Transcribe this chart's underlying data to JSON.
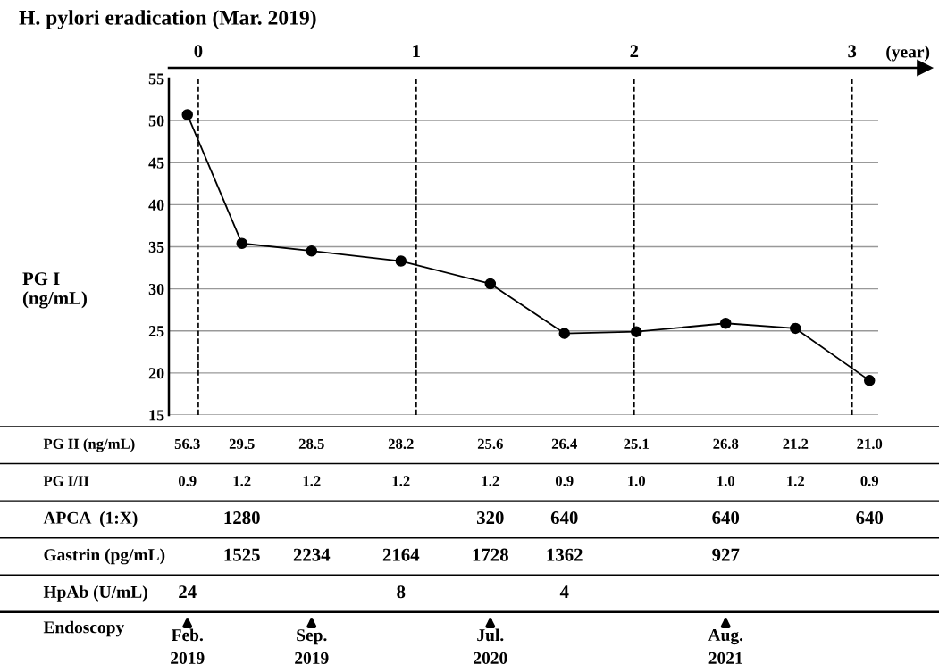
{
  "chart_data": [
    {
      "type": "line",
      "title": "H. pylori eradication (Mar. 2019)",
      "ylabel": "PG I\n(ng/mL)",
      "xlabel": "(year)",
      "x": [
        -0.05,
        0.2,
        0.52,
        0.93,
        1.34,
        1.68,
        2.01,
        2.42,
        2.74,
        3.08
      ],
      "series": [
        {
          "color": "#000000",
          "values": [
            50.7,
            35.4,
            34.5,
            33.3,
            30.6,
            24.7,
            24.9,
            25.9,
            25.3,
            19.1
          ]
        }
      ],
      "xlim": [
        -0.135,
        3.12
      ],
      "xticks": [
        0,
        1,
        2,
        3
      ],
      "ylim": [
        15,
        55
      ],
      "yticks": [
        15,
        20,
        25,
        30,
        35,
        40,
        45,
        50,
        55
      ],
      "grid": "y",
      "marker": "circle",
      "line_style": "solid",
      "ref_lines": [
        {
          "axis": "x",
          "value": 0,
          "line_style": "dashed",
          "color": "#000000"
        },
        {
          "axis": "x",
          "value": 1,
          "line_style": "dashed",
          "color": "#000000"
        },
        {
          "axis": "x",
          "value": 2,
          "line_style": "dashed",
          "color": "#000000"
        },
        {
          "axis": "x",
          "value": 3,
          "line_style": "dashed",
          "color": "#000000"
        }
      ]
    },
    {
      "type": "other",
      "y_categories": [
        "PG II (ng/mL)",
        "PG I/II",
        "APCA  (1:X)",
        "Gastrin (pg/mL)",
        "HpAb (U/mL)",
        "Endoscopy"
      ],
      "cell_labels": [
        [
          "56.3",
          "29.5",
          "28.5",
          "28.2",
          "25.6",
          "26.4",
          "25.1",
          "26.8",
          "21.2",
          "21.0"
        ],
        [
          "0.9",
          "1.2",
          "1.2",
          "1.2",
          "1.2",
          "0.9",
          "1.0",
          "1.0",
          "1.2",
          "0.9"
        ],
        [
          null,
          "1280",
          null,
          null,
          "320",
          "640",
          null,
          "640",
          null,
          "640"
        ],
        [
          null,
          "1525",
          "2234",
          "2164",
          "1728",
          "1362",
          null,
          "927",
          null,
          null
        ],
        [
          "24",
          null,
          null,
          "8",
          null,
          "4",
          null,
          null,
          null,
          null
        ],
        [
          "Feb.\n2019",
          null,
          "Sep.\n2019",
          null,
          "Jul.\n2020",
          null,
          null,
          "Aug.\n2021",
          null,
          null
        ]
      ]
    }
  ]
}
